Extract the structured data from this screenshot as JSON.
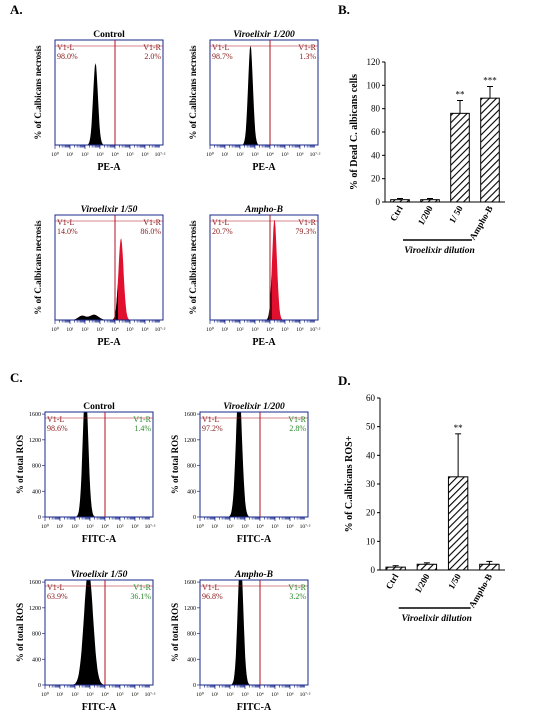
{
  "panels": {
    "A": {
      "label": "A.",
      "histograms": [
        {
          "title": "Control",
          "title_italic": false,
          "gate_left": "V1-L",
          "gate_right": "V1-R",
          "left_pct": "98.0%",
          "right_pct": "2.0%",
          "ylabel": "% of C.albicans necrosis",
          "xlabel": "PE-A",
          "peak_log": 2.7,
          "peak_width": 0.16,
          "peak_height": 0.78,
          "fill_color": "#000000",
          "tail_color": null,
          "small_bumps": false
        },
        {
          "title": "Viroelixir 1/200",
          "title_italic": true,
          "gate_left": "V1-L",
          "gate_right": "V1-R",
          "left_pct": "98.7%",
          "right_pct": "1.3%",
          "ylabel": "% of C.albicans necrosis",
          "xlabel": "PE-A",
          "peak_log": 2.7,
          "peak_width": 0.16,
          "peak_height": 0.95,
          "fill_color": "#000000",
          "tail_color": null,
          "small_bumps": false
        },
        {
          "title": "Viroelixir 1/50",
          "title_italic": true,
          "gate_left": "V1-L",
          "gate_right": "V1-R",
          "left_pct": "14.0%",
          "right_pct": "86.0%",
          "ylabel": "% of C.albicans necrosis",
          "xlabel": "PE-A",
          "peak_log": 4.4,
          "peak_width": 0.17,
          "peak_height": 0.78,
          "fill_color": "#e0102e",
          "tail_color": "#000000",
          "small_bumps": true
        },
        {
          "title": "Ampho-B",
          "title_italic": true,
          "gate_left": "V1-L",
          "gate_right": "V1-R",
          "left_pct": "20.7%",
          "right_pct": "79.3%",
          "ylabel": "% of C.albicans necrosis",
          "xlabel": "PE-A",
          "peak_log": 4.3,
          "peak_width": 0.16,
          "peak_height": 0.96,
          "fill_color": "#e0102e",
          "tail_color": "#000000",
          "small_bumps": false
        }
      ]
    },
    "B": {
      "label": "B.",
      "footer": "Viroelixir dilution"
    },
    "C": {
      "label": "C.",
      "histograms": [
        {
          "title": "Control",
          "title_italic": false,
          "gate_left": "V1-L",
          "gate_right": "V1-R",
          "left_pct": "98.6%",
          "right_pct": "1.4%",
          "ylabel": "% of total ROS",
          "xlabel": "FITC-A",
          "peak_log": 2.7,
          "peak_width": 0.18,
          "peak_height": 1.25,
          "fill_color": "#000000",
          "tail_color": "#1a8a1a",
          "small_bumps": false,
          "yticks": [
            "0",
            "400",
            "800",
            "1200",
            "1600"
          ]
        },
        {
          "title": "Viroelixir 1/200",
          "title_italic": true,
          "gate_left": "V1-L",
          "gate_right": "V1-R",
          "left_pct": "97.2%",
          "right_pct": "2.8%",
          "ylabel": "% of total ROS",
          "xlabel": "FITC-A",
          "peak_log": 2.6,
          "peak_width": 0.2,
          "peak_height": 1.25,
          "fill_color": "#000000",
          "tail_color": "#1a8a1a",
          "small_bumps": false,
          "yticks": [
            "0",
            "400",
            "800",
            "1200",
            "1600"
          ]
        },
        {
          "title": "Viroelixir 1/50",
          "title_italic": true,
          "gate_left": "V1-L",
          "gate_right": "V1-R",
          "left_pct": "63.9%",
          "right_pct": "36.1%",
          "ylabel": "% of total ROS",
          "xlabel": "FITC-A",
          "peak_log": 2.9,
          "peak_width": 0.3,
          "peak_height": 1.1,
          "fill_color": "#000000",
          "tail_color": "#1a8a1a",
          "small_bumps": false,
          "yticks": [
            "0",
            "400",
            "800",
            "1200",
            "1600"
          ]
        },
        {
          "title": "Ampho-B",
          "title_italic": true,
          "gate_left": "V1-L",
          "gate_right": "V1-R",
          "left_pct": "96.8%",
          "right_pct": "3.2%",
          "ylabel": "% of total ROS",
          "xlabel": "FITC-A",
          "peak_log": 2.7,
          "peak_width": 0.18,
          "peak_height": 1.25,
          "fill_color": "#000000",
          "tail_color": "#1a8a1a",
          "small_bumps": false,
          "yticks": [
            "0",
            "400",
            "800",
            "1200",
            "1600"
          ]
        }
      ]
    },
    "D": {
      "label": "D.",
      "footer": "Viroelixir dilution"
    }
  },
  "hist_xticks": [
    "10⁰",
    "10¹",
    "10²",
    "10³",
    "10⁴",
    "10⁵",
    "10⁶",
    "10⁷‧²"
  ],
  "chart_data": [
    {
      "type": "bar",
      "panel": "B",
      "title": "",
      "ylabel": "% of Dead C. albicans cells",
      "xlabel": "Viroelixir dilution",
      "categories": [
        "Ctrl",
        "1/200",
        "1/ 50",
        "Ampho-B"
      ],
      "values": [
        2,
        2,
        76,
        89
      ],
      "errors": [
        1,
        1,
        11,
        10
      ],
      "significance": [
        "",
        "",
        "**",
        "***"
      ],
      "ylim": [
        0,
        120
      ],
      "yticks": [
        0,
        20,
        40,
        60,
        80,
        100,
        120
      ],
      "grid": false,
      "legend": null
    },
    {
      "type": "bar",
      "panel": "D",
      "title": "",
      "ylabel": "% of C.albicans ROS+",
      "xlabel": "Viroelixir dilution",
      "categories": [
        "Ctrl",
        "1/200",
        "1/50",
        "Ampho-B"
      ],
      "values": [
        1,
        2,
        32.5,
        2
      ],
      "errors": [
        0.5,
        0.5,
        15,
        1
      ],
      "significance": [
        "",
        "",
        "**",
        ""
      ],
      "ylim": [
        0,
        60
      ],
      "yticks": [
        0,
        10,
        20,
        30,
        40,
        50,
        60
      ],
      "grid": false,
      "legend": null
    }
  ],
  "colors": {
    "axis": "#1a2a8c",
    "gate": "#b01020",
    "label_text": "#8b1a1a",
    "green_text": "#2a8a2a"
  }
}
